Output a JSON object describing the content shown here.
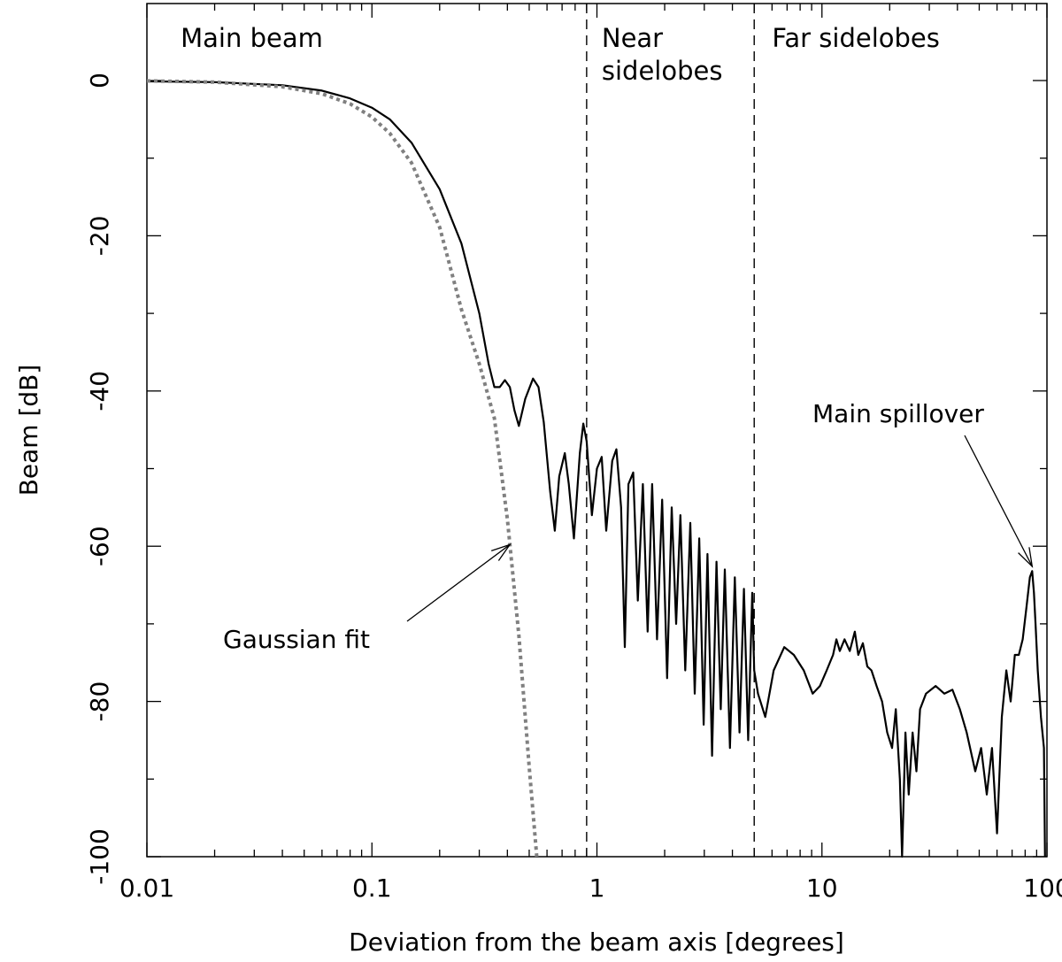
{
  "chart_data": {
    "type": "line",
    "xlabel": "Deviation from the beam axis [degrees]",
    "ylabel": "Beam [dB]",
    "xscale": "log",
    "xlim": [
      0.01,
      100
    ],
    "ylim": [
      -100,
      10
    ],
    "grid": false,
    "x_ticks": [
      0.01,
      0.1,
      1,
      10,
      100
    ],
    "x_tick_labels": [
      "0.01",
      "0.1",
      "1",
      "10",
      "100"
    ],
    "y_ticks": [
      0,
      -20,
      -40,
      -60,
      -80,
      -100
    ],
    "y_tick_labels": [
      "0",
      "-20",
      "-40",
      "-60",
      "-80",
      "-100"
    ],
    "region_boundaries": [
      0.9,
      5
    ],
    "regions": [
      {
        "label": "Main beam",
        "x": 0.012
      },
      {
        "label": "Near sidelobes",
        "x": 1.05
      },
      {
        "label": "Far sidelobes",
        "x": 6.0
      }
    ],
    "series": [
      {
        "style": "solid",
        "color": "#000000",
        "points": [
          [
            0.01,
            -0.1
          ],
          [
            0.02,
            -0.2
          ],
          [
            0.04,
            -0.6
          ],
          [
            0.06,
            -1.3
          ],
          [
            0.08,
            -2.3
          ],
          [
            0.1,
            -3.5
          ],
          [
            0.12,
            -5
          ],
          [
            0.15,
            -8
          ],
          [
            0.2,
            -14
          ],
          [
            0.25,
            -21
          ],
          [
            0.3,
            -30
          ],
          [
            0.33,
            -36.5
          ],
          [
            0.35,
            -39.5
          ],
          [
            0.37,
            -39.5
          ],
          [
            0.39,
            -38.6
          ],
          [
            0.41,
            -39.5
          ],
          [
            0.43,
            -42.5
          ],
          [
            0.45,
            -44.5
          ],
          [
            0.48,
            -41
          ],
          [
            0.52,
            -38.4
          ],
          [
            0.55,
            -39.5
          ],
          [
            0.58,
            -44
          ],
          [
            0.62,
            -53
          ],
          [
            0.65,
            -58
          ],
          [
            0.68,
            -51
          ],
          [
            0.72,
            -48
          ],
          [
            0.75,
            -52
          ],
          [
            0.79,
            -59
          ],
          [
            0.84,
            -48
          ],
          [
            0.87,
            -44.2
          ],
          [
            0.9,
            -46.5
          ],
          [
            0.95,
            -56
          ],
          [
            1.0,
            -50
          ],
          [
            1.05,
            -48.5
          ],
          [
            1.1,
            -58
          ],
          [
            1.17,
            -49
          ],
          [
            1.22,
            -47.5
          ],
          [
            1.28,
            -55
          ],
          [
            1.33,
            -73
          ],
          [
            1.38,
            -52
          ],
          [
            1.45,
            -50.5
          ],
          [
            1.52,
            -67
          ],
          [
            1.6,
            -52
          ],
          [
            1.68,
            -71
          ],
          [
            1.76,
            -52
          ],
          [
            1.85,
            -72
          ],
          [
            1.95,
            -54
          ],
          [
            2.05,
            -77
          ],
          [
            2.15,
            -55
          ],
          [
            2.25,
            -70
          ],
          [
            2.35,
            -56
          ],
          [
            2.47,
            -76
          ],
          [
            2.6,
            -57
          ],
          [
            2.72,
            -79
          ],
          [
            2.85,
            -59
          ],
          [
            2.98,
            -83
          ],
          [
            3.1,
            -61
          ],
          [
            3.25,
            -87
          ],
          [
            3.4,
            -62
          ],
          [
            3.55,
            -81
          ],
          [
            3.7,
            -63
          ],
          [
            3.9,
            -86
          ],
          [
            4.1,
            -64
          ],
          [
            4.3,
            -84
          ],
          [
            4.5,
            -65.5
          ],
          [
            4.7,
            -85
          ],
          [
            4.9,
            -66
          ],
          [
            5.0,
            -76
          ],
          [
            5.2,
            -79
          ],
          [
            5.6,
            -82
          ],
          [
            6.1,
            -76
          ],
          [
            6.8,
            -73
          ],
          [
            7.5,
            -74
          ],
          [
            8.3,
            -76
          ],
          [
            9.1,
            -79
          ],
          [
            9.8,
            -78
          ],
          [
            10.5,
            -76
          ],
          [
            11.2,
            -74
          ],
          [
            11.6,
            -72
          ],
          [
            12.0,
            -73.5
          ],
          [
            12.6,
            -72
          ],
          [
            13.3,
            -73.5
          ],
          [
            14.0,
            -71
          ],
          [
            14.5,
            -74
          ],
          [
            15.2,
            -72.5
          ],
          [
            15.9,
            -75.5
          ],
          [
            16.6,
            -76
          ],
          [
            17.5,
            -78
          ],
          [
            18.5,
            -80
          ],
          [
            19.5,
            -84
          ],
          [
            20.5,
            -86
          ],
          [
            21.3,
            -81
          ],
          [
            22.2,
            -90
          ],
          [
            22.7,
            -100
          ],
          [
            23.5,
            -84
          ],
          [
            24.3,
            -92
          ],
          [
            25.3,
            -84
          ],
          [
            26.3,
            -89
          ],
          [
            27.3,
            -81
          ],
          [
            29,
            -79
          ],
          [
            32,
            -78
          ],
          [
            35,
            -79
          ],
          [
            38,
            -78.5
          ],
          [
            41,
            -81
          ],
          [
            44,
            -84
          ],
          [
            48,
            -89
          ],
          [
            51,
            -86
          ],
          [
            54,
            -92
          ],
          [
            57,
            -86
          ],
          [
            60,
            -97
          ],
          [
            63,
            -82
          ],
          [
            66,
            -76
          ],
          [
            69,
            -80
          ],
          [
            72,
            -74
          ],
          [
            75,
            -74
          ],
          [
            78,
            -72
          ],
          [
            81,
            -68
          ],
          [
            84,
            -64
          ],
          [
            86,
            -63.2
          ],
          [
            87.5,
            -66
          ],
          [
            89,
            -70
          ],
          [
            91,
            -76
          ],
          [
            94,
            -82
          ],
          [
            97,
            -86
          ],
          [
            98,
            -100
          ]
        ]
      },
      {
        "name": "Gaussian fit",
        "style": "dotted",
        "color": "#808080",
        "points": [
          [
            0.01,
            -0.05
          ],
          [
            0.02,
            -0.2
          ],
          [
            0.04,
            -0.8
          ],
          [
            0.06,
            -1.7
          ],
          [
            0.08,
            -3.0
          ],
          [
            0.1,
            -4.7
          ],
          [
            0.12,
            -6.8
          ],
          [
            0.15,
            -10.6
          ],
          [
            0.2,
            -18.9
          ],
          [
            0.25,
            -29.5
          ],
          [
            0.3,
            -36.5
          ],
          [
            0.35,
            -43.5
          ],
          [
            0.4,
            -56.5
          ],
          [
            0.45,
            -71.5
          ],
          [
            0.5,
            -88.5
          ],
          [
            0.54,
            -100
          ]
        ]
      }
    ],
    "annotations": [
      {
        "text": "Gaussian fit",
        "arrow_to": [
          0.41,
          -59.8
        ]
      },
      {
        "text": "Main spillover",
        "arrow_to": [
          86,
          -62.6
        ]
      }
    ]
  }
}
